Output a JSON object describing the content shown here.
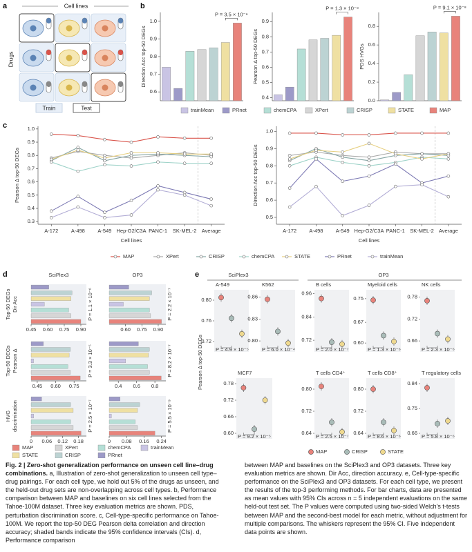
{
  "figure": {
    "panel_labels": [
      "a",
      "b",
      "c",
      "d",
      "e"
    ],
    "diagram": {
      "col_label": "Cell lines",
      "row_label": "Drugs",
      "legend": [
        "Train",
        "Test"
      ]
    }
  },
  "chart_data": [
    {
      "type": "bar",
      "legend": "bottom",
      "categories": [
        "trainMean",
        "PRnet",
        "chemCPA",
        "XPert",
        "CRISP",
        "STATE",
        "MAP"
      ],
      "colors": [
        "#c9c4e4",
        "#9d9ac8",
        "#b5dfd6",
        "#d6d6d6",
        "#bcd3d3",
        "#efe0a2",
        "#e8837b"
      ],
      "charts": [
        {
          "ylabel": "Direction Acc top-50 DEGs",
          "ylim": [
            0.55,
            1.05
          ],
          "yticks": [
            0.6,
            0.7,
            0.8,
            0.9,
            {
              "value": 1,
              "label": "1.0"
            }
          ],
          "values": [
            0.74,
            0.62,
            0.83,
            0.84,
            0.85,
            0.88,
            0.99
          ],
          "annotation": "P = 3.5 × 10⁻⁶"
        },
        {
          "ylabel": "Pearson Δ top-50 DEGs",
          "ylim": [
            0.38,
            0.96
          ],
          "yticks": [
            0.4,
            0.5,
            0.6,
            0.7,
            0.8,
            0.9
          ],
          "values": [
            0.42,
            0.47,
            0.72,
            0.78,
            0.79,
            0.81,
            0.93
          ],
          "annotation": "P = 1.3 × 10⁻⁹"
        },
        {
          "ylabel": "PDS HVGs",
          "ylim": [
            0,
            0.95
          ],
          "yticks": [
            {
              "value": 0,
              "label": "0.0"
            },
            0.2,
            0.4,
            0.6,
            0.8
          ],
          "values": [
            0.01,
            0.09,
            0.28,
            0.7,
            0.74,
            0.73,
            0.91
          ],
          "annotation": "P = 9.1 × 10⁻⁸"
        }
      ]
    },
    {
      "type": "line",
      "legend": "bottom",
      "xlabel": "Cell lines",
      "categories": [
        "A-172",
        "A-498",
        "A-549",
        "Hep-G2/C3A",
        "PANC-1",
        "SK-MEL-2",
        "Average"
      ],
      "series": [
        {
          "name": "MAP",
          "color": "#d9534a"
        },
        {
          "name": "XPert",
          "color": "#a9a9a9"
        },
        {
          "name": "CRISP",
          "color": "#86a6a4"
        },
        {
          "name": "chemCPA",
          "color": "#9fd3c9"
        },
        {
          "name": "STATE",
          "color": "#e6cf80"
        },
        {
          "name": "PRnet",
          "color": "#7d7ab4"
        },
        {
          "name": "trainMean",
          "color": "#b3aed6"
        }
      ],
      "charts": [
        {
          "ylabel": "Pearson Δ top-50 DEGs",
          "ylim": [
            0.28,
            1.02
          ],
          "yticks": [
            0.3,
            0.4,
            0.5,
            0.6,
            0.7,
            0.8,
            0.9,
            {
              "value": 1,
              "label": "1.0"
            }
          ],
          "values": [
            [
              0.96,
              0.95,
              0.92,
              0.9,
              0.94,
              0.93,
              0.93
            ],
            [
              0.78,
              0.83,
              0.8,
              0.78,
              0.8,
              0.82,
              0.8
            ],
            [
              0.76,
              0.86,
              0.76,
              0.8,
              0.81,
              0.8,
              0.79
            ],
            [
              0.75,
              0.68,
              0.73,
              0.72,
              0.75,
              0.74,
              0.74
            ],
            [
              0.77,
              0.84,
              0.78,
              0.82,
              0.82,
              0.81,
              0.81
            ],
            [
              0.38,
              0.49,
              0.37,
              0.46,
              0.57,
              0.52,
              0.47
            ],
            [
              0.33,
              0.41,
              0.33,
              0.35,
              0.54,
              0.5,
              0.42
            ]
          ]
        },
        {
          "ylabel": "Direction Acc top-50 DEGs",
          "ylim": [
            0.46,
            1.03
          ],
          "yticks": [
            0.5,
            0.6,
            0.7,
            0.8,
            0.9,
            {
              "value": 1,
              "label": "1.0"
            }
          ],
          "values": [
            [
              0.99,
              0.99,
              0.98,
              0.98,
              0.99,
              0.99,
              0.99
            ],
            [
              0.86,
              0.88,
              0.86,
              0.85,
              0.88,
              0.87,
              0.87
            ],
            [
              0.83,
              0.9,
              0.85,
              0.83,
              0.86,
              0.87,
              0.86
            ],
            [
              0.8,
              0.85,
              0.82,
              0.8,
              0.82,
              0.85,
              0.84
            ],
            [
              0.84,
              0.89,
              0.88,
              0.93,
              0.87,
              0.84,
              0.87
            ],
            [
              0.67,
              0.84,
              0.71,
              0.74,
              0.81,
              0.7,
              0.74
            ],
            [
              0.56,
              0.68,
              0.51,
              0.57,
              0.68,
              0.69,
              0.62
            ]
          ]
        }
      ]
    },
    {
      "type": "hbar",
      "legend": "bottom",
      "columns": [
        "SciPlex3",
        "OP3"
      ],
      "rows": [
        [
          "Top-50 DEGs",
          "Dir Acc"
        ],
        [
          "Top-50 DEGs",
          "Pearson Δ"
        ],
        [
          "HVG",
          "discrimination"
        ]
      ],
      "series": [
        {
          "name": "MAP",
          "color": "#e8837b"
        },
        {
          "name": "XPert",
          "color": "#d6d6d6"
        },
        {
          "name": "chemCPA",
          "color": "#b5dfd6"
        },
        {
          "name": "trainMean",
          "color": "#c9c4e4"
        },
        {
          "name": "STATE",
          "color": "#efe0a2"
        },
        {
          "name": "CRISP",
          "color": "#bcd3d3"
        },
        {
          "name": "PRnet",
          "color": "#9d9ac8"
        }
      ],
      "charts": [
        {
          "xlim": [
            0.45,
            0.95
          ],
          "xticks": [
            0.45,
            {
              "value": 0.6,
              "label": "0.60"
            },
            0.75,
            {
              "value": 0.9,
              "label": "0.90"
            }
          ],
          "values": [
            0.9,
            0.81,
            0.79,
            0.57,
            0.81,
            0.82,
            0.61
          ],
          "annotation": "P = 1.1 × 10⁻⁶"
        },
        {
          "xlim": [
            0.45,
            0.97
          ],
          "xticks": [
            {
              "value": 0.6,
              "label": "0.60"
            },
            0.75,
            {
              "value": 0.9,
              "label": "0.90"
            }
          ],
          "values": [
            0.93,
            0.83,
            0.82,
            0.58,
            0.82,
            0.84,
            0.63
          ],
          "annotation": "P = 2.2 × 10⁻⁷"
        },
        {
          "xlim": [
            0.4,
            0.85
          ],
          "xticks": [
            0.45,
            {
              "value": 0.6,
              "label": "0.60"
            },
            0.75
          ],
          "values": [
            0.8,
            0.72,
            0.7,
            0.42,
            0.71,
            0.72,
            0.5
          ],
          "annotation": "P = 3.3 × 10⁻⁵"
        },
        {
          "xlim": [
            0.3,
            0.92
          ],
          "xticks": [
            0.4,
            0.6,
            0.8
          ],
          "values": [
            0.87,
            0.74,
            0.72,
            0.48,
            0.73,
            0.74,
            0.62
          ],
          "annotation": "P = 8.2 × 10⁻⁷"
        },
        {
          "xlim": [
            0,
            0.21
          ],
          "xticks": [
            0,
            0.06,
            0.12,
            0.18
          ],
          "values": [
            0.19,
            0.16,
            0.15,
            0.01,
            0.16,
            0.15,
            0.04
          ],
          "annotation": "P = 2.5 × 10⁻⁷"
        },
        {
          "xlim": [
            0,
            0.26
          ],
          "xticks": [
            0,
            0.08,
            0.16,
            0.24
          ],
          "values": [
            0.21,
            0.13,
            0.12,
            0.01,
            0.13,
            0.14,
            0.05
          ],
          "annotation": "P = 5.5 × 10⁻⁹"
        }
      ]
    },
    {
      "type": "dot",
      "legend": "bottom",
      "ylabel": "Pearson Δ top-50 DEGs",
      "group_labels": [
        "SciPlex3",
        "OP3"
      ],
      "series": [
        {
          "name": "MAP",
          "color": "#e8837b"
        },
        {
          "name": "CRISP",
          "color": "#a9bcb8"
        },
        {
          "name": "STATE",
          "color": "#efd98f"
        }
      ],
      "charts": [
        {
          "title": "A-549",
          "ylim": [
            0.7,
            0.82
          ],
          "yticks": [
            0.72,
            0.76,
            {
              "value": 0.8,
              "label": "0.80"
            }
          ],
          "values": [
            0.805,
            0.765,
            0.735
          ],
          "annotation": "P = 4.9 × 10⁻⁵"
        },
        {
          "title": "K562",
          "ylim": [
            0.785,
            0.87
          ],
          "yticks": [
            {
              "value": 0.8,
              "label": "0.80"
            },
            0.83,
            0.86
          ],
          "values": [
            0.857,
            0.813,
            0.797
          ],
          "annotation": "P = 6.0 × 10⁻⁴"
        },
        {
          "title": "MCF7",
          "ylim": [
            0.58,
            0.8
          ],
          "yticks": [
            {
              "value": 0.6,
              "label": "0.60"
            },
            0.66,
            0.72,
            0.78
          ],
          "values": [
            0.765,
            0.615,
            0.72
          ],
          "annotation": "P = 9.2 × 10⁻⁵"
        },
        {
          "title": "B cells",
          "ylim": [
            0.66,
            0.98
          ],
          "yticks": [
            0.72,
            0.84,
            0.96
          ],
          "values": [
            0.935,
            0.71,
            0.7
          ],
          "annotation": "P = 2.0 × 10⁻⁷"
        },
        {
          "title": "Myeloid cells",
          "ylim": [
            0.57,
            0.78
          ],
          "yticks": [
            {
              "value": 0.6,
              "label": "0.60"
            },
            0.67,
            0.75
          ],
          "values": [
            0.745,
            0.625,
            0.605
          ],
          "annotation": "P = 1.3 × 10⁻⁶"
        },
        {
          "title": "NK cells",
          "ylim": [
            0.63,
            0.8
          ],
          "yticks": [
            0.66,
            0.72,
            0.78
          ],
          "values": [
            0.77,
            0.68,
            0.665
          ],
          "annotation": "P = 2.3 × 10⁻⁶"
        },
        {
          "title": "T cells CD4⁺",
          "ylim": [
            0.62,
            0.84
          ],
          "yticks": [
            0.64,
            0.72,
            {
              "value": 0.8,
              "label": "0.80"
            }
          ],
          "values": [
            0.81,
            0.68,
            0.645
          ],
          "annotation": "P = 2.5 × 10⁻⁷"
        },
        {
          "title": "T cells CD8⁺",
          "ylim": [
            0.62,
            0.84
          ],
          "yticks": [
            0.64,
            0.72,
            {
              "value": 0.8,
              "label": "0.80"
            }
          ],
          "values": [
            0.8,
            0.68,
            0.65
          ],
          "annotation": "P = 8.6 × 10⁻⁶"
        },
        {
          "title": "T regulatory cells",
          "ylim": [
            0.64,
            0.86
          ],
          "yticks": [
            0.66,
            0.75,
            0.84
          ],
          "values": [
            0.825,
            0.695,
            0.705
          ],
          "annotation": "P = 5.8 × 10⁻⁶"
        }
      ]
    }
  ],
  "caption": {
    "title": "Fig. 2 | Zero-shot generalization performance on unseen cell line–drug combinations.",
    "body_left": "a, Illustration of zero-shot generalization to unseen cell type–drug pairings. For each cell type, we hold out 5% of the drugs as unseen, and the held-out drug sets are non-overlapping across cell types. b, Performance comparison between MAP and baselines on six cell lines selected from the Tahoe-100M dataset. Three key evaluation metrics are shown. PDS, perturbation discrimination score. c, Cell-type-specific performance on Tahoe-100M. We report the top-50 DEG Pearson delta correlation and direction accuracy; shaded bands indicate the 95% confidence intervals (CIs). d, Performance comparison",
    "body_right": "between MAP and baselines on the SciPlex3 and OP3 datasets. Three key evaluation metrics are shown. Dir Acc, direction accuracy. e, Cell-type-specific performance on the SciPlex3 and OP3 datasets. For each cell type, we present the results of the top-3 performing methods. For bar charts, data are presented as mean values with 95% CIs across n = 5 independent evaluations on the same held-out test set. The P values were computed using two-sided Welch's t-tests between MAP and the second-best model for each metric, without adjustment for multiple comparisons. The whiskers represent the 95% CI. Five independent data points are shown."
  }
}
